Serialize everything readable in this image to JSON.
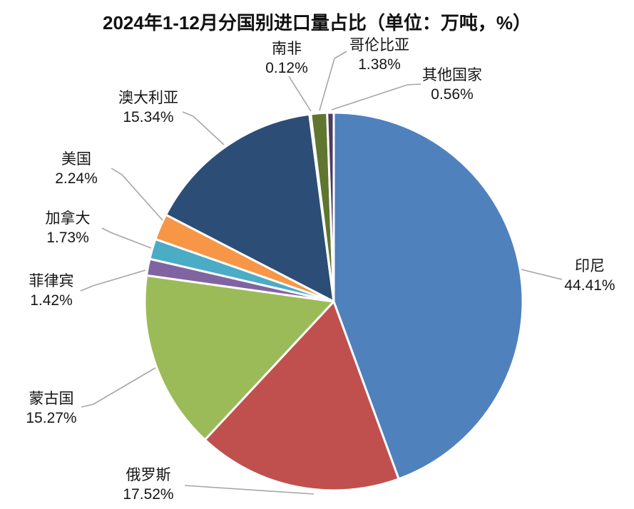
{
  "chart_data": {
    "type": "pie",
    "title": "2024年1-12月分国别进口量占比（单位：万吨，%）",
    "unit_note": "单位：万吨，%",
    "period": "2024年1-12月",
    "start_angle_deg": 0,
    "direction": "clockwise",
    "legend_position": "none",
    "label_style": "outside-with-leader-lines",
    "slices": [
      {
        "label": "印尼",
        "value": 44.41,
        "display": "44.41%",
        "color": "#4F81BD"
      },
      {
        "label": "俄罗斯",
        "value": 17.52,
        "display": "17.52%",
        "color": "#C0504D"
      },
      {
        "label": "蒙古国",
        "value": 15.27,
        "display": "15.27%",
        "color": "#9BBB59"
      },
      {
        "label": "菲律宾",
        "value": 1.42,
        "display": "1.42%",
        "color": "#8064A2"
      },
      {
        "label": "加拿大",
        "value": 1.73,
        "display": "1.73%",
        "color": "#4BACC6"
      },
      {
        "label": "美国",
        "value": 2.24,
        "display": "2.24%",
        "color": "#F79646"
      },
      {
        "label": "澳大利亚",
        "value": 15.34,
        "display": "15.34%",
        "color": "#2C4D75"
      },
      {
        "label": "南非",
        "value": 0.12,
        "display": "0.12%",
        "color": "#772C2A"
      },
      {
        "label": "哥伦比亚",
        "value": 1.38,
        "display": "1.38%",
        "color": "#5F7530"
      },
      {
        "label": "其他国家",
        "value": 0.56,
        "display": "0.56%",
        "color": "#4D3B62"
      }
    ],
    "colors": {
      "background": "#FFFFFF",
      "slice_border": "#FFFFFF",
      "leader_line": "#A6A6A6",
      "text": "#151515"
    }
  }
}
